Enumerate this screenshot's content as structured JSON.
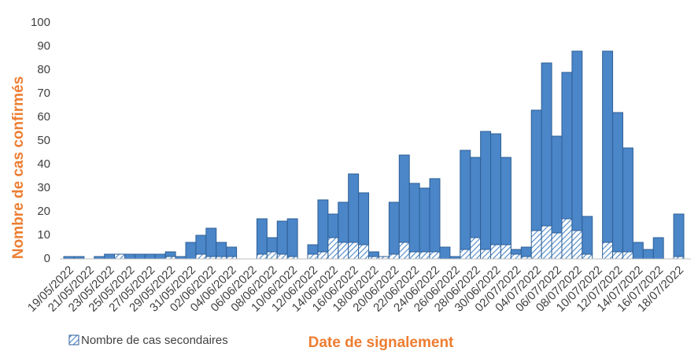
{
  "chart_data": {
    "type": "stacked_bar",
    "y_label": "Nombre de cas confirmés",
    "x_label": "Date de signalement",
    "categories": [
      "19/05/2022",
      null,
      "21/05/2022",
      null,
      "23/05/2022",
      null,
      "25/05/2022",
      null,
      "27/05/2022",
      null,
      "29/05/2022",
      null,
      "31/05/2022",
      null,
      "02/06/2022",
      null,
      "04/06/2022",
      null,
      "06/06/2022",
      null,
      "08/06/2022",
      null,
      "10/06/2022",
      null,
      "12/06/2022",
      null,
      "14/06/2022",
      null,
      "16/06/2022",
      null,
      "18/06/2022",
      null,
      "20/06/2022",
      null,
      "22/06/2022",
      null,
      "24/06/2022",
      null,
      "26/06/2022",
      null,
      "28/06/2022",
      null,
      "30/06/2022",
      null,
      "02/07/2022",
      null,
      "04/07/2022",
      null,
      "06/07/2022",
      null,
      "08/07/2022",
      null,
      "10/07/2022",
      null,
      "12/07/2022",
      null,
      "14/07/2022",
      null,
      "16/07/2022",
      null,
      "18/07/2022"
    ],
    "series": [
      {
        "name": "Nombre de cas secondaires",
        "color": "#4a86c8",
        "pattern": "hatch",
        "values": [
          0,
          0,
          0,
          0,
          0,
          2,
          0,
          0,
          0,
          0,
          1,
          0,
          0,
          2,
          1,
          1,
          1,
          0,
          0,
          2,
          3,
          2,
          1,
          0,
          2,
          3,
          9,
          7,
          7,
          6,
          1,
          1,
          2,
          7,
          3,
          3,
          3,
          0,
          0,
          4,
          9,
          4,
          6,
          6,
          2,
          1,
          12,
          14,
          11,
          17,
          12,
          2,
          0,
          7,
          3,
          3,
          0,
          0,
          0,
          0,
          1
        ]
      },
      {
        "color": "#4a86c8",
        "values": [
          1,
          1,
          0,
          1,
          2,
          0,
          2,
          2,
          2,
          2,
          2,
          1,
          7,
          8,
          12,
          6,
          4,
          0,
          0,
          15,
          6,
          14,
          16,
          0,
          4,
          22,
          10,
          17,
          29,
          22,
          2,
          0,
          22,
          37,
          29,
          27,
          31,
          5,
          1,
          42,
          34,
          50,
          47,
          37,
          2,
          4,
          51,
          69,
          41,
          62,
          76,
          16,
          0,
          81,
          59,
          44,
          7,
          4,
          9,
          0,
          18
        ]
      }
    ],
    "ylim": [
      0,
      100
    ],
    "yticks": [
      0,
      10,
      20,
      30,
      40,
      50,
      60,
      70,
      80,
      90,
      100
    ],
    "grid": false
  }
}
